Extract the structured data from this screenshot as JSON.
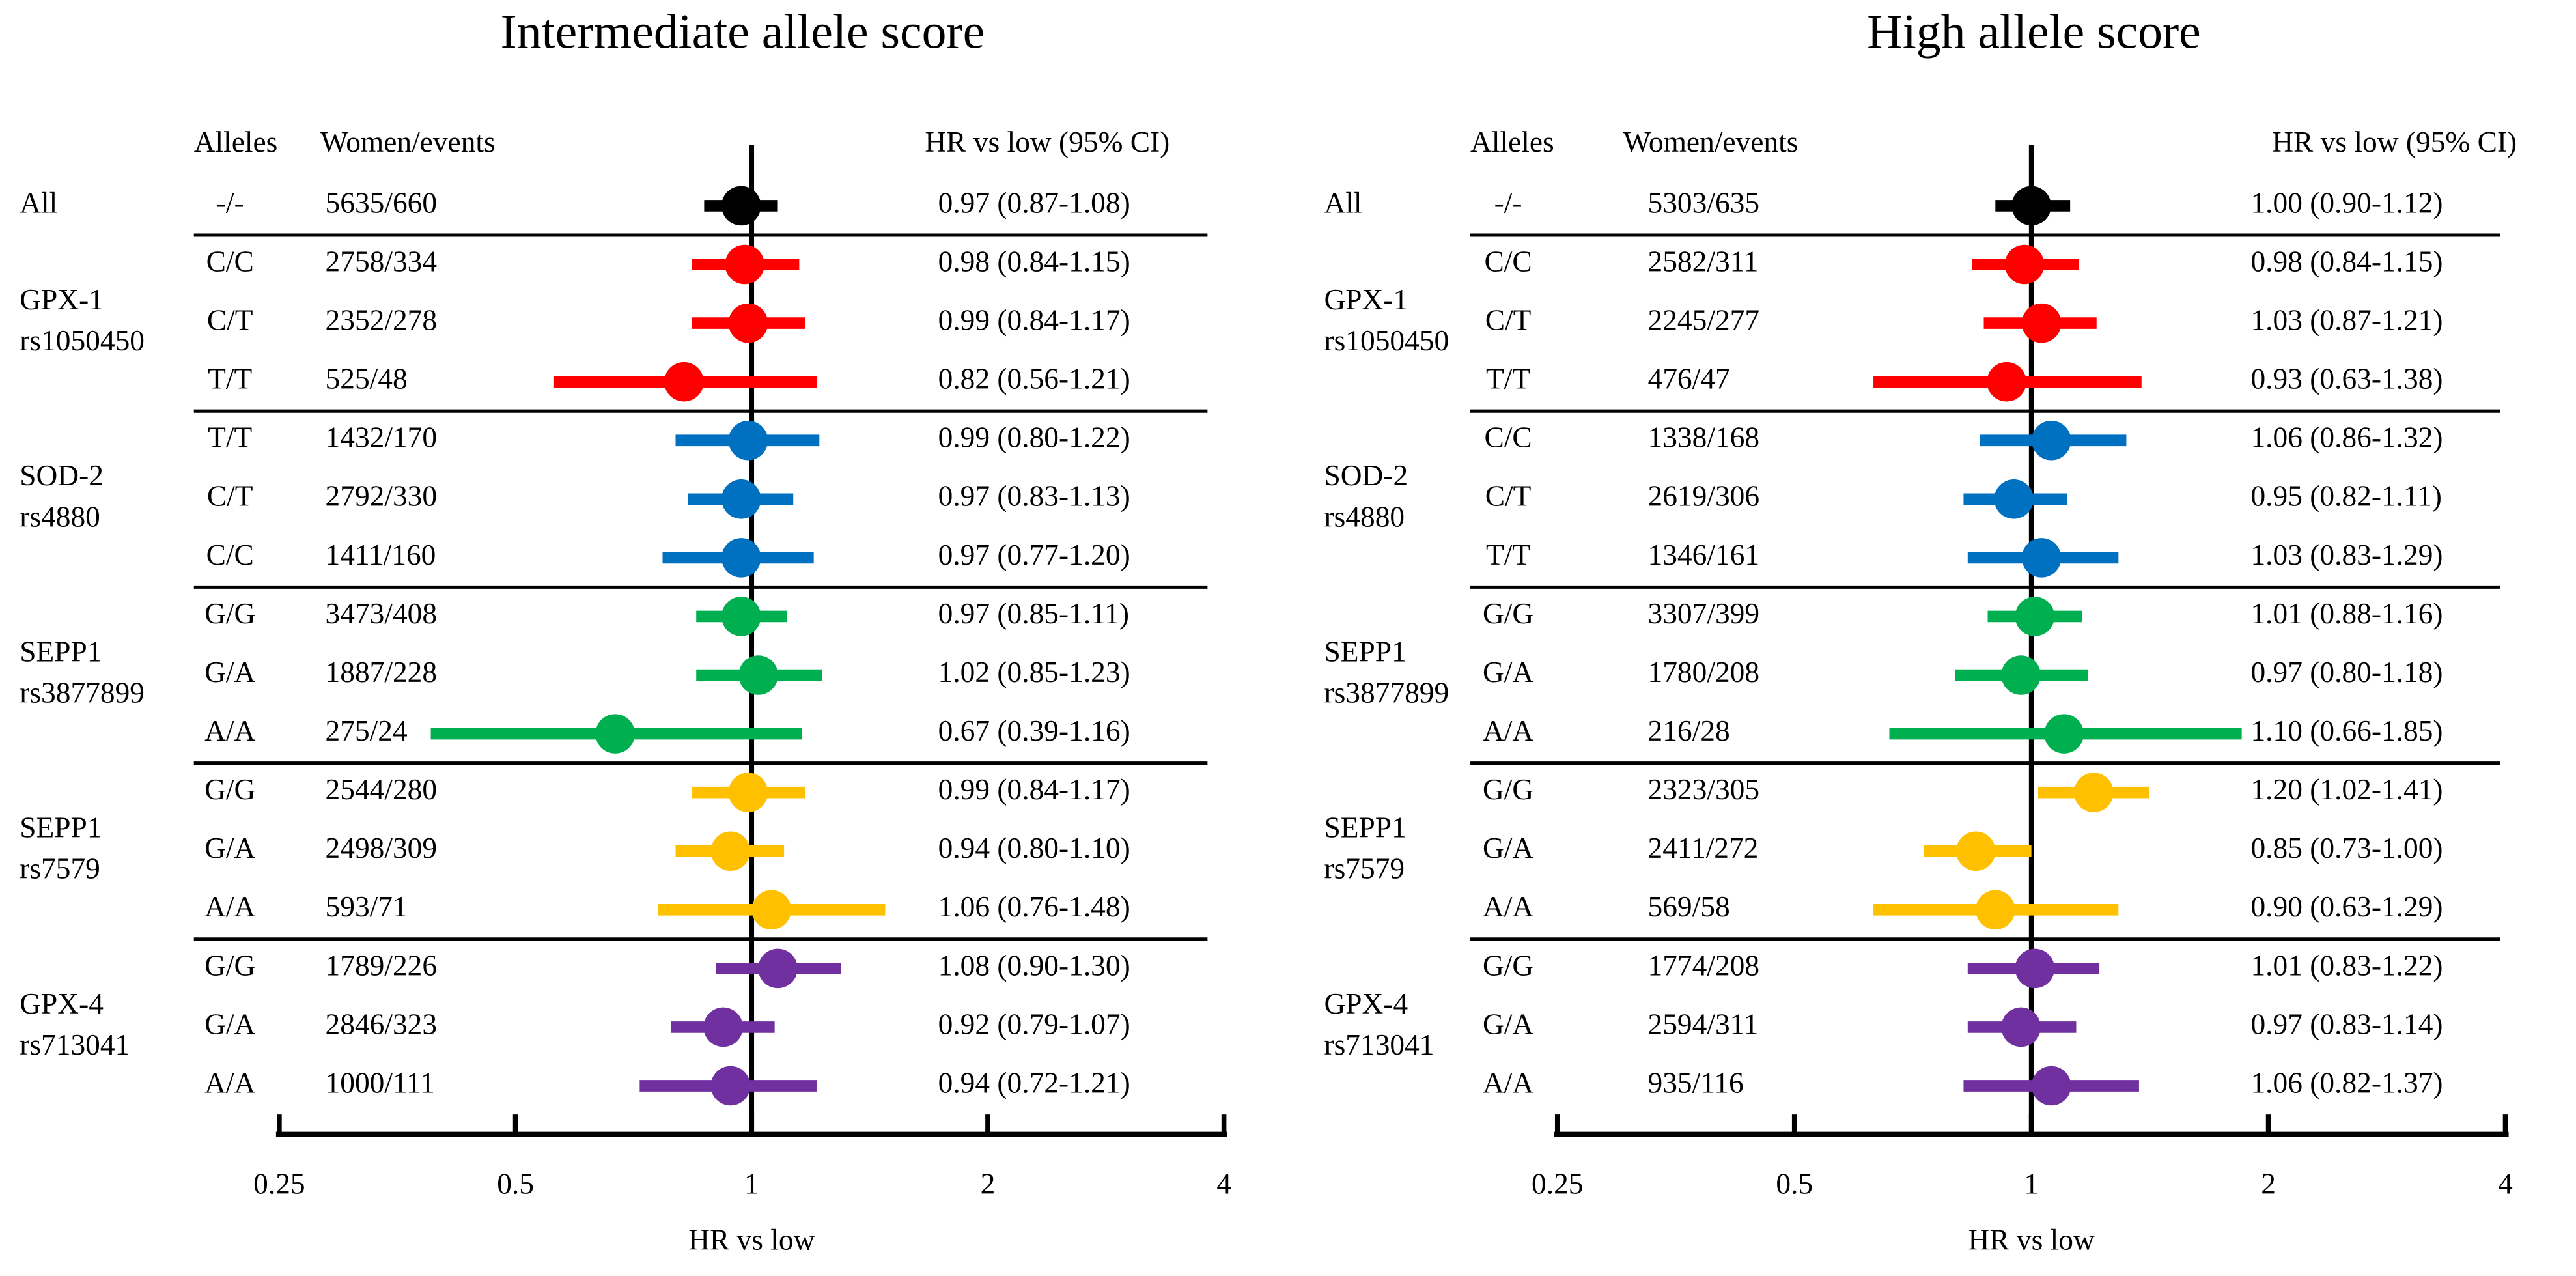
{
  "chart_data": [
    {
      "type": "forest",
      "title": "Intermediate allele score",
      "xlabel": "HR vs low",
      "column_headers": [
        "Alleles",
        "Women/events",
        "HR vs low (95% CI)"
      ],
      "xlim": [
        0.25,
        4
      ],
      "xticks": [
        0.25,
        0.5,
        1,
        2,
        4
      ],
      "log_x": true,
      "reference": 1,
      "groups": [
        {
          "label": [
            "All"
          ],
          "color": "#000000",
          "rows": [
            {
              "alleles": "-/-",
              "women_events": "5635/660",
              "hr": 0.97,
              "ci": [
                0.87,
                1.08
              ],
              "label": "0.97 (0.87-1.08)"
            }
          ]
        },
        {
          "label": [
            "GPX-1",
            "rs1050450"
          ],
          "color": "#ff0000",
          "rows": [
            {
              "alleles": "C/C",
              "women_events": "2758/334",
              "hr": 0.98,
              "ci": [
                0.84,
                1.15
              ],
              "label": "0.98 (0.84-1.15)"
            },
            {
              "alleles": "C/T",
              "women_events": "2352/278",
              "hr": 0.99,
              "ci": [
                0.84,
                1.17
              ],
              "label": "0.99 (0.84-1.17)"
            },
            {
              "alleles": "T/T",
              "women_events": "525/48",
              "hr": 0.82,
              "ci": [
                0.56,
                1.21
              ],
              "label": "0.82 (0.56-1.21)"
            }
          ]
        },
        {
          "label": [
            "SOD-2",
            "rs4880"
          ],
          "color": "#0070c0",
          "rows": [
            {
              "alleles": "T/T",
              "women_events": "1432/170",
              "hr": 0.99,
              "ci": [
                0.8,
                1.22
              ],
              "label": "0.99 (0.80-1.22)"
            },
            {
              "alleles": "C/T",
              "women_events": "2792/330",
              "hr": 0.97,
              "ci": [
                0.83,
                1.13
              ],
              "label": "0.97 (0.83-1.13)"
            },
            {
              "alleles": "C/C",
              "women_events": "1411/160",
              "hr": 0.97,
              "ci": [
                0.77,
                1.2
              ],
              "label": "0.97 (0.77-1.20)"
            }
          ]
        },
        {
          "label": [
            "SEPP1",
            "rs3877899"
          ],
          "color": "#00b050",
          "rows": [
            {
              "alleles": "G/G",
              "women_events": "3473/408",
              "hr": 0.97,
              "ci": [
                0.85,
                1.11
              ],
              "label": "0.97 (0.85-1.11)"
            },
            {
              "alleles": "G/A",
              "women_events": "1887/228",
              "hr": 1.02,
              "ci": [
                0.85,
                1.23
              ],
              "label": "1.02 (0.85-1.23)"
            },
            {
              "alleles": "A/A",
              "women_events": "275/24",
              "hr": 0.67,
              "ci": [
                0.39,
                1.16
              ],
              "label": "0.67 (0.39-1.16)"
            }
          ]
        },
        {
          "label": [
            "SEPP1",
            "rs7579"
          ],
          "color": "#ffc000",
          "rows": [
            {
              "alleles": "G/G",
              "women_events": "2544/280",
              "hr": 0.99,
              "ci": [
                0.84,
                1.17
              ],
              "label": "0.99 (0.84-1.17)"
            },
            {
              "alleles": "G/A",
              "women_events": "2498/309",
              "hr": 0.94,
              "ci": [
                0.8,
                1.1
              ],
              "label": "0.94 (0.80-1.10)"
            },
            {
              "alleles": "A/A",
              "women_events": "593/71",
              "hr": 1.06,
              "ci": [
                0.76,
                1.48
              ],
              "label": "1.06 (0.76-1.48)"
            }
          ]
        },
        {
          "label": [
            "GPX-4",
            "rs713041"
          ],
          "color": "#7030a0",
          "rows": [
            {
              "alleles": "G/G",
              "women_events": "1789/226",
              "hr": 1.08,
              "ci": [
                0.9,
                1.3
              ],
              "label": "1.08 (0.90-1.30)"
            },
            {
              "alleles": "G/A",
              "women_events": "2846/323",
              "hr": 0.92,
              "ci": [
                0.79,
                1.07
              ],
              "label": "0.92 (0.79-1.07)"
            },
            {
              "alleles": "A/A",
              "women_events": "1000/111",
              "hr": 0.94,
              "ci": [
                0.72,
                1.21
              ],
              "label": "0.94 (0.72-1.21)"
            }
          ]
        }
      ]
    },
    {
      "type": "forest",
      "title": "High allele score",
      "xlabel": "HR vs low",
      "column_headers": [
        "Alleles",
        "Women/events",
        "HR vs low (95% CI)"
      ],
      "xlim": [
        0.25,
        4
      ],
      "xticks": [
        0.25,
        0.5,
        1,
        2,
        4
      ],
      "log_x": true,
      "reference": 1,
      "groups": [
        {
          "label": [
            "All"
          ],
          "color": "#000000",
          "rows": [
            {
              "alleles": "-/-",
              "women_events": "5303/635",
              "hr": 1.0,
              "ci": [
                0.9,
                1.12
              ],
              "label": "1.00 (0.90-1.12)"
            }
          ]
        },
        {
          "label": [
            "GPX-1",
            "rs1050450"
          ],
          "color": "#ff0000",
          "rows": [
            {
              "alleles": "C/C",
              "women_events": "2582/311",
              "hr": 0.98,
              "ci": [
                0.84,
                1.15
              ],
              "label": "0.98 (0.84-1.15)"
            },
            {
              "alleles": "C/T",
              "women_events": "2245/277",
              "hr": 1.03,
              "ci": [
                0.87,
                1.21
              ],
              "label": "1.03 (0.87-1.21)"
            },
            {
              "alleles": "T/T",
              "women_events": "476/47",
              "hr": 0.93,
              "ci": [
                0.63,
                1.38
              ],
              "label": "0.93 (0.63-1.38)"
            }
          ]
        },
        {
          "label": [
            "SOD-2",
            "rs4880"
          ],
          "color": "#0070c0",
          "rows": [
            {
              "alleles": "C/C",
              "women_events": "1338/168",
              "hr": 1.06,
              "ci": [
                0.86,
                1.32
              ],
              "label": "1.06 (0.86-1.32)"
            },
            {
              "alleles": "C/T",
              "women_events": "2619/306",
              "hr": 0.95,
              "ci": [
                0.82,
                1.11
              ],
              "label": "0.95 (0.82-1.11)"
            },
            {
              "alleles": "T/T",
              "women_events": "1346/161",
              "hr": 1.03,
              "ci": [
                0.83,
                1.29
              ],
              "label": "1.03 (0.83-1.29)"
            }
          ]
        },
        {
          "label": [
            "SEPP1",
            "rs3877899"
          ],
          "color": "#00b050",
          "rows": [
            {
              "alleles": "G/G",
              "women_events": "3307/399",
              "hr": 1.01,
              "ci": [
                0.88,
                1.16
              ],
              "label": "1.01 (0.88-1.16)"
            },
            {
              "alleles": "G/A",
              "women_events": "1780/208",
              "hr": 0.97,
              "ci": [
                0.8,
                1.18
              ],
              "label": "0.97 (0.80-1.18)"
            },
            {
              "alleles": "A/A",
              "women_events": "216/28",
              "hr": 1.1,
              "ci": [
                0.66,
                1.85
              ],
              "label": "1.10 (0.66-1.85)"
            }
          ]
        },
        {
          "label": [
            "SEPP1",
            "rs7579"
          ],
          "color": "#ffc000",
          "rows": [
            {
              "alleles": "G/G",
              "women_events": "2323/305",
              "hr": 1.2,
              "ci": [
                1.02,
                1.41
              ],
              "label": "1.20 (1.02-1.41)"
            },
            {
              "alleles": "G/A",
              "women_events": "2411/272",
              "hr": 0.85,
              "ci": [
                0.73,
                1.0
              ],
              "label": "0.85 (0.73-1.00)"
            },
            {
              "alleles": "A/A",
              "women_events": "569/58",
              "hr": 0.9,
              "ci": [
                0.63,
                1.29
              ],
              "label": "0.90 (0.63-1.29)"
            }
          ]
        },
        {
          "label": [
            "GPX-4",
            "rs713041"
          ],
          "color": "#7030a0",
          "rows": [
            {
              "alleles": "G/G",
              "women_events": "1774/208",
              "hr": 1.01,
              "ci": [
                0.83,
                1.22
              ],
              "label": "1.01 (0.83-1.22)"
            },
            {
              "alleles": "G/A",
              "women_events": "2594/311",
              "hr": 0.97,
              "ci": [
                0.83,
                1.14
              ],
              "label": "0.97 (0.83-1.14)"
            },
            {
              "alleles": "A/A",
              "women_events": "935/116",
              "hr": 1.06,
              "ci": [
                0.82,
                1.37
              ],
              "label": "1.06 (0.82-1.37)"
            }
          ]
        }
      ]
    }
  ]
}
